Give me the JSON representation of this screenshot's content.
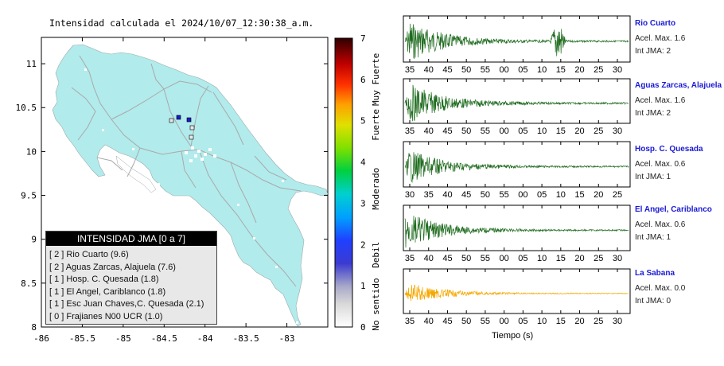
{
  "map": {
    "title": "Intensidad calculada el 2024/10/07_12:30:38_a.m.",
    "x_ticks": [
      "-86",
      "-85.5",
      "-85",
      "-84.5",
      "-84",
      "-83.5",
      "-83"
    ],
    "y_ticks": [
      "11",
      "10.5",
      "10",
      "9.5",
      "9",
      "8.5",
      "8"
    ]
  },
  "colorbar": {
    "ticks": [
      "7",
      "6",
      "5",
      "4",
      "3",
      "2",
      "1",
      "0"
    ],
    "categories": [
      "Muy Fuerte",
      "Fuerte",
      "Moderado",
      "Debil",
      "No sentido"
    ]
  },
  "legend": {
    "title": "INTENSIDAD JMA [0 a 7]",
    "items": [
      "[ 2 ] Rio Cuarto (9.6)",
      "[ 2 ] Aguas Zarcas, Alajuela (7.6)",
      "[ 1 ] Hosp. C. Quesada (1.8)",
      "[ 1 ] El Angel, Cariblanco (1.8)",
      "[ 1 ] Esc Juan Chaves,C. Quesada (2.1)",
      "[ 0 ] Frajianes N00 UCR (1.0)"
    ]
  },
  "waveforms": [
    {
      "station": "Rio Cuarto",
      "acel": "Acel. Max. 1.6",
      "int": "Int JMA: 2",
      "color": "#1d6b1d",
      "ticks": [
        "35",
        "40",
        "45",
        "50",
        "55",
        "00",
        "05",
        "10",
        "15",
        "20",
        "25",
        "30"
      ]
    },
    {
      "station": "Aguas Zarcas, Alajuela",
      "acel": "Acel. Max. 1.6",
      "int": "Int JMA: 2",
      "color": "#1d6b1d",
      "ticks": [
        "35",
        "40",
        "45",
        "50",
        "55",
        "00",
        "05",
        "10",
        "15",
        "20",
        "25",
        "30"
      ]
    },
    {
      "station": "Hosp. C. Quesada",
      "acel": "Acel. Max. 0.6",
      "int": "Int JMA: 1",
      "color": "#1d6b1d",
      "ticks": [
        "30",
        "35",
        "40",
        "45",
        "50",
        "55",
        "00",
        "05",
        "10",
        "15",
        "20",
        "25"
      ]
    },
    {
      "station": "El Angel, Cariblanco",
      "acel": "Acel. Max. 0.6",
      "int": "Int JMA: 1",
      "color": "#1d6b1d",
      "ticks": [
        "35",
        "40",
        "45",
        "50",
        "55",
        "00",
        "05",
        "10",
        "15",
        "20",
        "25",
        "30"
      ]
    },
    {
      "station": "La Sabana",
      "acel": "Acel. Max. 0.0",
      "int": "Int JMA: 0",
      "color": "#f5a800",
      "ticks": [
        "35",
        "40",
        "45",
        "50",
        "55",
        "00",
        "05",
        "10",
        "15",
        "20",
        "25",
        "30"
      ]
    }
  ],
  "time_label": "Tiempo (s)",
  "chart_data": [
    {
      "type": "map",
      "title": "Intensidad calculada el 2024/10/07_12:30:38_a.m.",
      "xlim": [
        -86,
        -82.5
      ],
      "ylim": [
        8,
        11.3
      ],
      "stations": [
        {
          "name": "Rio Cuarto",
          "intensity": 2,
          "lon": -84.22,
          "lat": 10.34
        },
        {
          "name": "Aguas Zarcas, Alajuela",
          "intensity": 2,
          "lon": -84.34,
          "lat": 10.37
        },
        {
          "name": "Hosp. C. Quesada",
          "intensity": 1,
          "lon": -84.43,
          "lat": 10.33
        },
        {
          "name": "El Angel, Cariblanco",
          "intensity": 1,
          "lon": -84.18,
          "lat": 10.24
        },
        {
          "name": "Esc Juan Chaves,C. Quesada",
          "intensity": 1,
          "lon": -84.18,
          "lat": 10.13
        }
      ]
    },
    {
      "type": "heatmap",
      "title": "colorbar",
      "range": [
        0,
        7
      ]
    },
    {
      "type": "line",
      "series": [
        {
          "name": "Rio Cuarto",
          "acel_max": 1.6,
          "int_jma": 2
        }
      ]
    },
    {
      "type": "line",
      "series": [
        {
          "name": "Aguas Zarcas, Alajuela",
          "acel_max": 1.6,
          "int_jma": 2
        }
      ]
    },
    {
      "type": "line",
      "series": [
        {
          "name": "Hosp. C. Quesada",
          "acel_max": 0.6,
          "int_jma": 1
        }
      ]
    },
    {
      "type": "line",
      "series": [
        {
          "name": "El Angel, Cariblanco",
          "acel_max": 0.6,
          "int_jma": 1
        }
      ]
    },
    {
      "type": "line",
      "series": [
        {
          "name": "La Sabana",
          "acel_max": 0.0,
          "int_jma": 0
        }
      ]
    }
  ]
}
